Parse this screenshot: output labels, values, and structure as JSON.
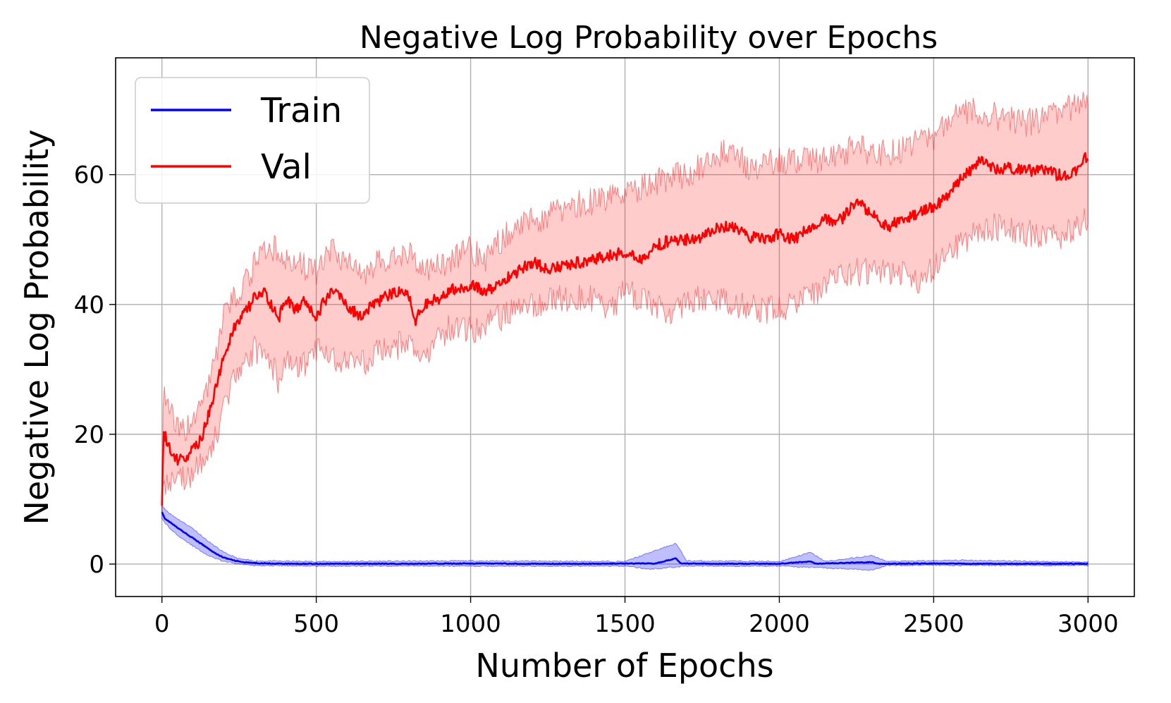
{
  "chart_data": {
    "type": "line",
    "title": "Negative Log Probability over Epochs",
    "xlabel": "Number of Epochs",
    "ylabel": "Negative Log Probability",
    "xlim": [
      -150,
      3150
    ],
    "ylim": [
      -5,
      78
    ],
    "xticks": [
      0,
      500,
      1000,
      1500,
      2000,
      2500,
      3000
    ],
    "yticks": [
      0,
      20,
      40,
      60
    ],
    "xtick_labels": [
      "0",
      "500",
      "1000",
      "1500",
      "2000",
      "2500",
      "3000"
    ],
    "ytick_labels": [
      "0",
      "20",
      "40",
      "60"
    ],
    "grid": true,
    "legend_position": "upper-left",
    "series": [
      {
        "name": "Train",
        "color": "#0000ff",
        "band_color": "#0000ff",
        "points": [
          [
            0,
            8
          ],
          [
            10,
            7
          ],
          [
            25,
            6.5
          ],
          [
            50,
            5.6
          ],
          [
            75,
            4.8
          ],
          [
            100,
            4.0
          ],
          [
            125,
            3.2
          ],
          [
            150,
            2.4
          ],
          [
            175,
            1.6
          ],
          [
            200,
            1.0
          ],
          [
            230,
            0.6
          ],
          [
            260,
            0.3
          ],
          [
            300,
            0.15
          ],
          [
            400,
            0.05
          ],
          [
            600,
            0.05
          ],
          [
            800,
            0.05
          ],
          [
            1000,
            0.1
          ],
          [
            1200,
            0.05
          ],
          [
            1400,
            0.05
          ],
          [
            1600,
            0.1
          ],
          [
            1665,
            0.9
          ],
          [
            1680,
            0.1
          ],
          [
            1800,
            0.05
          ],
          [
            2000,
            0.05
          ],
          [
            2100,
            0.4
          ],
          [
            2120,
            0.05
          ],
          [
            2300,
            0.3
          ],
          [
            2320,
            0.05
          ],
          [
            2500,
            0.1
          ],
          [
            2700,
            0.05
          ],
          [
            3000,
            0.05
          ]
        ],
        "band_upper": [
          [
            0,
            9
          ],
          [
            25,
            7.8
          ],
          [
            50,
            7
          ],
          [
            100,
            5.5
          ],
          [
            150,
            3.5
          ],
          [
            200,
            1.8
          ],
          [
            250,
            0.8
          ],
          [
            300,
            0.5
          ],
          [
            500,
            0.4
          ],
          [
            1000,
            0.5
          ],
          [
            1500,
            0.4
          ],
          [
            1665,
            3.2
          ],
          [
            1700,
            0.5
          ],
          [
            2000,
            0.4
          ],
          [
            2100,
            1.8
          ],
          [
            2150,
            0.4
          ],
          [
            2300,
            1.3
          ],
          [
            2350,
            0.4
          ],
          [
            2600,
            0.6
          ],
          [
            3000,
            0.3
          ]
        ],
        "band_lower": [
          [
            0,
            7
          ],
          [
            25,
            5.5
          ],
          [
            50,
            4.5
          ],
          [
            100,
            2.8
          ],
          [
            150,
            1.3
          ],
          [
            200,
            0.4
          ],
          [
            250,
            0
          ],
          [
            300,
            -0.2
          ],
          [
            500,
            -0.3
          ],
          [
            1000,
            -0.3
          ],
          [
            1500,
            -0.3
          ],
          [
            1580,
            -0.8
          ],
          [
            1700,
            -0.3
          ],
          [
            2000,
            -0.3
          ],
          [
            2300,
            -0.9
          ],
          [
            2350,
            -0.2
          ],
          [
            3000,
            -0.2
          ]
        ]
      },
      {
        "name": "Val",
        "color": "#ff0000",
        "band_color": "#ff0000",
        "points": [
          [
            0,
            9
          ],
          [
            5,
            20.5
          ],
          [
            15,
            19
          ],
          [
            30,
            17
          ],
          [
            50,
            16
          ],
          [
            75,
            16.5
          ],
          [
            100,
            17.5
          ],
          [
            125,
            19
          ],
          [
            150,
            23
          ],
          [
            175,
            27
          ],
          [
            200,
            32
          ],
          [
            230,
            36
          ],
          [
            260,
            38
          ],
          [
            300,
            41
          ],
          [
            330,
            42
          ],
          [
            350,
            40
          ],
          [
            380,
            38
          ],
          [
            400,
            41
          ],
          [
            430,
            39
          ],
          [
            460,
            40.5
          ],
          [
            500,
            38
          ],
          [
            520,
            40
          ],
          [
            560,
            42.5
          ],
          [
            600,
            40
          ],
          [
            640,
            38
          ],
          [
            680,
            40
          ],
          [
            720,
            41
          ],
          [
            760,
            42
          ],
          [
            800,
            41.5
          ],
          [
            820,
            37.5
          ],
          [
            850,
            40
          ],
          [
            900,
            41
          ],
          [
            950,
            42.5
          ],
          [
            1000,
            43
          ],
          [
            1050,
            42
          ],
          [
            1100,
            43.5
          ],
          [
            1150,
            45
          ],
          [
            1200,
            46.5
          ],
          [
            1250,
            45.5
          ],
          [
            1300,
            46
          ],
          [
            1350,
            46.5
          ],
          [
            1400,
            47
          ],
          [
            1450,
            47.5
          ],
          [
            1500,
            48
          ],
          [
            1550,
            47
          ],
          [
            1600,
            49
          ],
          [
            1650,
            50
          ],
          [
            1700,
            50
          ],
          [
            1750,
            50.5
          ],
          [
            1800,
            52
          ],
          [
            1850,
            52
          ],
          [
            1900,
            50.5
          ],
          [
            1950,
            50
          ],
          [
            2000,
            51
          ],
          [
            2050,
            50
          ],
          [
            2100,
            52
          ],
          [
            2150,
            53
          ],
          [
            2200,
            53
          ],
          [
            2250,
            56
          ],
          [
            2300,
            54
          ],
          [
            2350,
            52
          ],
          [
            2400,
            53
          ],
          [
            2450,
            54
          ],
          [
            2500,
            55
          ],
          [
            2550,
            57
          ],
          [
            2600,
            60
          ],
          [
            2650,
            62
          ],
          [
            2700,
            61
          ],
          [
            2750,
            61
          ],
          [
            2800,
            60.5
          ],
          [
            2850,
            61
          ],
          [
            2900,
            60
          ],
          [
            2950,
            60
          ],
          [
            3000,
            63
          ]
        ],
        "band_upper": [
          [
            0,
            10
          ],
          [
            5,
            28
          ],
          [
            30,
            23
          ],
          [
            60,
            20
          ],
          [
            100,
            22
          ],
          [
            150,
            27
          ],
          [
            200,
            38
          ],
          [
            250,
            42
          ],
          [
            300,
            46
          ],
          [
            350,
            49
          ],
          [
            400,
            47
          ],
          [
            450,
            46
          ],
          [
            500,
            45
          ],
          [
            550,
            48
          ],
          [
            600,
            47
          ],
          [
            650,
            45
          ],
          [
            700,
            46.5
          ],
          [
            800,
            48
          ],
          [
            850,
            45
          ],
          [
            900,
            46
          ],
          [
            950,
            47.5
          ],
          [
            1000,
            48.5
          ],
          [
            1050,
            47
          ],
          [
            1100,
            50
          ],
          [
            1150,
            52
          ],
          [
            1200,
            53
          ],
          [
            1250,
            53.5
          ],
          [
            1300,
            55
          ],
          [
            1400,
            56
          ],
          [
            1500,
            57
          ],
          [
            1600,
            59
          ],
          [
            1700,
            60
          ],
          [
            1800,
            63
          ],
          [
            1850,
            64
          ],
          [
            1900,
            61
          ],
          [
            2000,
            62
          ],
          [
            2100,
            62
          ],
          [
            2200,
            63
          ],
          [
            2250,
            65
          ],
          [
            2300,
            63
          ],
          [
            2400,
            64
          ],
          [
            2500,
            66
          ],
          [
            2600,
            70
          ],
          [
            2700,
            69
          ],
          [
            2800,
            68
          ],
          [
            2900,
            69
          ],
          [
            3000,
            72
          ]
        ],
        "band_lower": [
          [
            0,
            8
          ],
          [
            5,
            13
          ],
          [
            30,
            12.5
          ],
          [
            60,
            13
          ],
          [
            100,
            14
          ],
          [
            150,
            16
          ],
          [
            200,
            24
          ],
          [
            250,
            30
          ],
          [
            300,
            33
          ],
          [
            350,
            31
          ],
          [
            380,
            28
          ],
          [
            400,
            31
          ],
          [
            450,
            30
          ],
          [
            500,
            33
          ],
          [
            550,
            31
          ],
          [
            600,
            32
          ],
          [
            650,
            31
          ],
          [
            700,
            33
          ],
          [
            800,
            34
          ],
          [
            850,
            31
          ],
          [
            900,
            35
          ],
          [
            950,
            37
          ],
          [
            1000,
            36
          ],
          [
            1050,
            37
          ],
          [
            1100,
            38
          ],
          [
            1150,
            39
          ],
          [
            1200,
            40
          ],
          [
            1300,
            41
          ],
          [
            1400,
            41
          ],
          [
            1450,
            39
          ],
          [
            1500,
            42
          ],
          [
            1600,
            40
          ],
          [
            1660,
            38
          ],
          [
            1700,
            41
          ],
          [
            1800,
            41
          ],
          [
            1900,
            39.5
          ],
          [
            2000,
            39
          ],
          [
            2050,
            40
          ],
          [
            2100,
            41
          ],
          [
            2200,
            45
          ],
          [
            2300,
            45
          ],
          [
            2400,
            45
          ],
          [
            2450,
            43
          ],
          [
            2500,
            46
          ],
          [
            2600,
            50
          ],
          [
            2700,
            52
          ],
          [
            2800,
            51
          ],
          [
            2900,
            50
          ],
          [
            3000,
            53
          ]
        ]
      }
    ]
  }
}
